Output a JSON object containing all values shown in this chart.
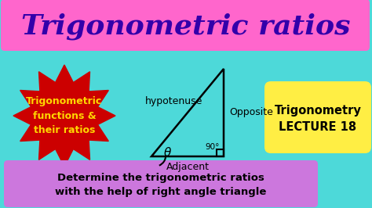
{
  "bg_color": "#4DD9D9",
  "title_text": "Trigonometric ratios",
  "title_color": "#3300AA",
  "title_bg": "#FF66CC",
  "left_box_text": "Trigonometric\nfunctions &\ntheir ratios",
  "left_box_text_color": "#FFD700",
  "left_box_color": "#CC0000",
  "right_box_text": "Trigonometry\nLECTURE 18",
  "right_box_color": "#FFEE44",
  "right_box_text_color": "#000000",
  "bottom_box_text": "Determine the trigonometric ratios\nwith the help of right angle triangle",
  "bottom_box_color": "#CC77DD",
  "bottom_box_text_color": "#000000",
  "triangle_color": "#000000",
  "label_hypotenuse": "hypotenuse",
  "label_opposite": "Opposite",
  "label_adjacent": "Adjacent",
  "label_theta": "θ",
  "label_90": "90°",
  "figw": 4.74,
  "figh": 2.66,
  "dpi": 100
}
